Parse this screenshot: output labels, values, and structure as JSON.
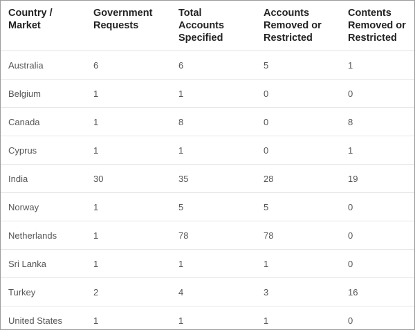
{
  "table": {
    "headers": [
      [
        "Country /",
        "Market"
      ],
      [
        "Government",
        "Requests"
      ],
      [
        "Total",
        "Accounts",
        "Specified"
      ],
      [
        "Accounts",
        "Removed or",
        "Restricted"
      ],
      [
        "Contents",
        "Removed or",
        "Restricted"
      ]
    ],
    "rows": [
      [
        "Australia",
        "6",
        "6",
        "5",
        "1"
      ],
      [
        "Belgium",
        "1",
        "1",
        "0",
        "0"
      ],
      [
        "Canada",
        "1",
        "8",
        "0",
        "8"
      ],
      [
        "Cyprus",
        "1",
        "1",
        "0",
        "1"
      ],
      [
        "India",
        "30",
        "35",
        "28",
        "19"
      ],
      [
        "Norway",
        "1",
        "5",
        "5",
        "0"
      ],
      [
        "Netherlands",
        "1",
        "78",
        "78",
        "0"
      ],
      [
        "Sri Lanka",
        "1",
        "1",
        "1",
        "0"
      ],
      [
        "Turkey",
        "2",
        "4",
        "3",
        "16"
      ],
      [
        "United States",
        "1",
        "1",
        "1",
        "0"
      ]
    ]
  }
}
